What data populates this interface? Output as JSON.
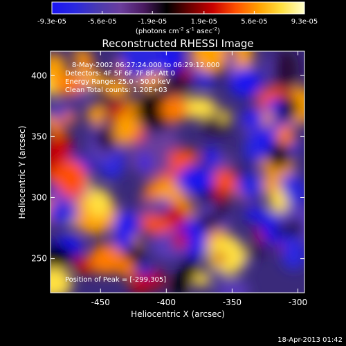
{
  "chart_data": {
    "type": "heatmap",
    "title": "Reconstructed RHESSI Image",
    "xlabel": "Heliocentric X (arcsec)",
    "ylabel": "Heliocentric Y (arcsec)",
    "xlim": [
      -488,
      -295
    ],
    "ylim": [
      222,
      420
    ],
    "x_ticks": [
      -450,
      -400,
      -350,
      -300
    ],
    "y_ticks": [
      250,
      300,
      350,
      400
    ],
    "colorbar": {
      "min": -9.3e-05,
      "max": 9.3e-05,
      "tick_values": [
        -9.3e-05,
        -5.6e-05,
        -1.9e-05,
        1.9e-05,
        5.6e-05,
        9.3e-05
      ],
      "tick_labels": [
        "-9.3e-05",
        "-5.6e-05",
        "-1.9e-05",
        "1.9e-05",
        "5.6e-05",
        "9.3e-05"
      ],
      "unit_text_parts": [
        "(photons cm",
        "-2",
        " s",
        "-1",
        " asec",
        "-2",
        ")"
      ]
    },
    "annotations": [
      "8-May-2002 06:27:24.000 to 06:29:12.000",
      "Detectors: 4F 5F 6F 7F 8F, Att 0",
      "Energy Range: 25.0 - 50.0 keV",
      "Clean     Total counts: 1.20E+03"
    ],
    "peak_label": "Position of Peak = [-299,305]",
    "peak_position": [
      -299,
      305
    ],
    "grid": false
  },
  "footer": {
    "timestamp": "18-Apr-2013 01:42"
  },
  "colors": {
    "background": "#000000",
    "text": "#ffffff",
    "colormap": [
      "#1a14f0",
      "#2a28e0",
      "#4a3ab0",
      "#6b3d9c",
      "#4a1a60",
      "#000000",
      "#6a0000",
      "#c80000",
      "#ff5000",
      "#ffa000",
      "#ffe040",
      "#ffffcc"
    ]
  }
}
